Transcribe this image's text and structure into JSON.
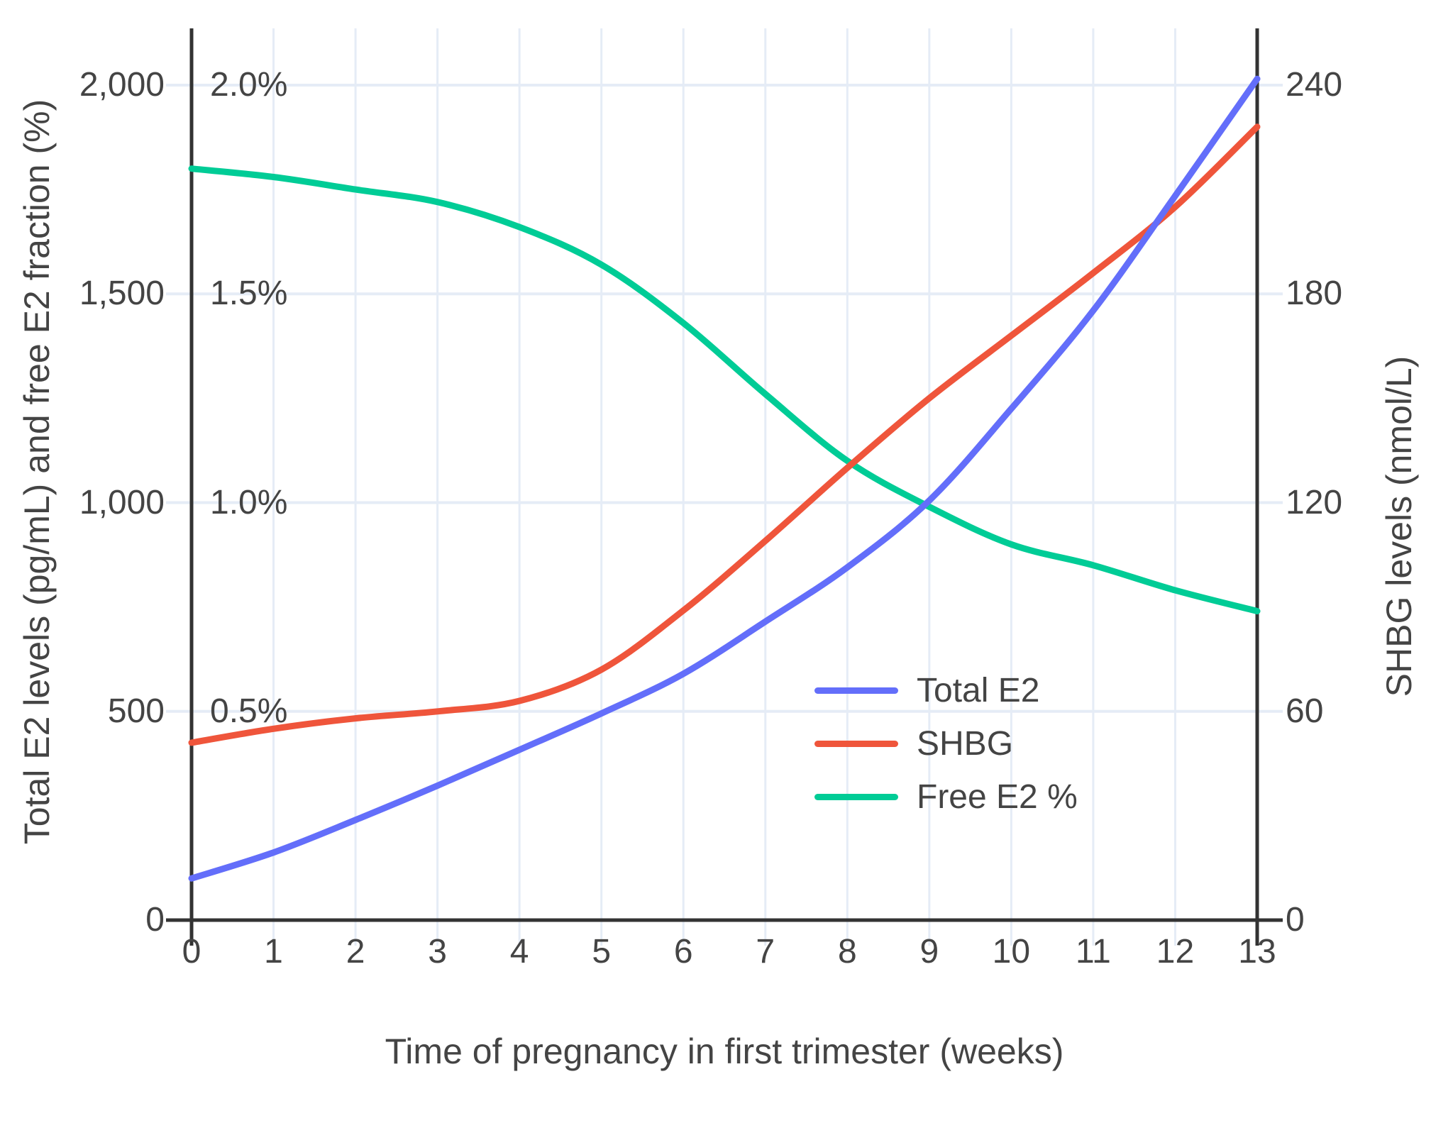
{
  "chart_data": {
    "type": "line",
    "title": "",
    "xlabel": "Time of pregnancy in first trimester (weeks)",
    "ylabel_left": "Total E2 levels (pg/mL) and free E2 fraction (%)",
    "ylabel_right": "SHBG levels (nmol/L)",
    "x": [
      0,
      1,
      2,
      3,
      4,
      5,
      6,
      7,
      8,
      9,
      10,
      11,
      12,
      13
    ],
    "x_ticks": [
      "0",
      "1",
      "2",
      "3",
      "4",
      "5",
      "6",
      "7",
      "8",
      "9",
      "10",
      "11",
      "12",
      "13"
    ],
    "left_axis": {
      "ticks": [
        "0",
        "500",
        "1,000",
        "1,500",
        "2,000"
      ],
      "values": [
        0,
        500,
        1000,
        1500,
        2000
      ],
      "units": "pg/mL",
      "range": [
        0,
        2125
      ]
    },
    "percent_axis": {
      "ticks": [
        "0.5%",
        "1.0%",
        "1.5%",
        "2.0%"
      ],
      "values": [
        0.5,
        1.0,
        1.5,
        2.0
      ],
      "units": "%"
    },
    "right_axis": {
      "ticks": [
        "0",
        "60",
        "120",
        "180",
        "240"
      ],
      "values": [
        0,
        60,
        120,
        180,
        240
      ],
      "units": "nmol/L",
      "range": [
        0,
        255
      ]
    },
    "series": [
      {
        "name": "Total E2",
        "axis": "left",
        "units": "pg/mL",
        "color": "#636EFA",
        "values": [
          100,
          162,
          240,
          322,
          408,
          495,
          590,
          715,
          845,
          1005,
          1225,
          1460,
          1735,
          2015
        ]
      },
      {
        "name": "SHBG",
        "axis": "right",
        "units": "nmol/L",
        "color": "#EF553B",
        "values": [
          51,
          55,
          58,
          60,
          63,
          72,
          89,
          109,
          130,
          150,
          168,
          186,
          205,
          228
        ]
      },
      {
        "name": "Free E2 %",
        "axis": "percent",
        "units": "%",
        "color": "#00CC96",
        "values": [
          1.8,
          1.78,
          1.75,
          1.72,
          1.66,
          1.57,
          1.43,
          1.26,
          1.1,
          0.99,
          0.9,
          0.85,
          0.79,
          0.74
        ]
      }
    ],
    "grid": true,
    "legend_position": "middle-right",
    "colors": {
      "grid": "#E5ECF6",
      "axis": "#333333",
      "text": "#444444",
      "background": "#FFFFFF"
    }
  }
}
